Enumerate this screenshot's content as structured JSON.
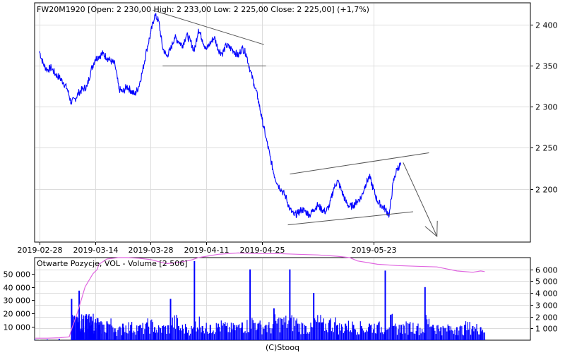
{
  "chart_data": [
    {
      "type": "line",
      "title": "FW20M1920 [Open: 2 230,00  High: 2 233,00  Low: 2 225,00  Close: 2 225,00] (+1,7%)",
      "xlabel": "",
      "ylabel": "",
      "x_tick_labels": [
        "2019-02-28",
        "2019-03-14",
        "2019-03-28",
        "2019-04-11",
        "2019-04-25",
        "2019-05-23"
      ],
      "x_tick_days": [
        0,
        14,
        28,
        42,
        56,
        84
      ],
      "x_range_days": [
        -1.2,
        123.5
      ],
      "ylim": [
        2135,
        2427
      ],
      "y_ticks": [
        2200,
        2250,
        2300,
        2350,
        2400
      ],
      "y_tick_labels": [
        "2 200",
        "2 250",
        "2 300",
        "2 350",
        "2 400"
      ],
      "grid": true,
      "series": [
        {
          "color": "#0000ff",
          "x_days": [
            0,
            1,
            2,
            3,
            4,
            5,
            6,
            7,
            8,
            9,
            10,
            11,
            12,
            13,
            14,
            15,
            16,
            17,
            18,
            19,
            20,
            21,
            22,
            23,
            24,
            25,
            26,
            27,
            28,
            29,
            30,
            31,
            32,
            33,
            34,
            35,
            36,
            37,
            38,
            39,
            40,
            41,
            42,
            43,
            44,
            45,
            46,
            47,
            48,
            49,
            50,
            51,
            52,
            53,
            54,
            55,
            56,
            57,
            58,
            59,
            60,
            61,
            62,
            63,
            64,
            65,
            66,
            67,
            68,
            69,
            70,
            71,
            72,
            73,
            74,
            75,
            76,
            77,
            78,
            79,
            80,
            81,
            82,
            83,
            84,
            85,
            86,
            87,
            88,
            89,
            90,
            91
          ],
          "values": [
            2368,
            2352,
            2345,
            2348,
            2340,
            2336,
            2330,
            2322,
            2305,
            2310,
            2318,
            2322,
            2325,
            2345,
            2358,
            2362,
            2365,
            2360,
            2356,
            2352,
            2322,
            2318,
            2325,
            2320,
            2315,
            2325,
            2345,
            2370,
            2390,
            2412,
            2405,
            2372,
            2362,
            2370,
            2385,
            2380,
            2375,
            2388,
            2380,
            2368,
            2395,
            2382,
            2370,
            2378,
            2385,
            2370,
            2365,
            2375,
            2372,
            2368,
            2362,
            2372,
            2365,
            2345,
            2328,
            2310,
            2285,
            2262,
            2240,
            2218,
            2205,
            2198,
            2190,
            2175,
            2168,
            2170,
            2175,
            2172,
            2168,
            2175,
            2180,
            2175,
            2172,
            2180,
            2200,
            2210,
            2198,
            2185,
            2178,
            2180,
            2185,
            2190,
            2205,
            2215,
            2200,
            2185,
            2180,
            2175,
            2168,
            2208,
            2225,
            2230
          ]
        }
      ],
      "annotations": [
        {
          "type": "trend-line",
          "points": [
            [
              28.5,
              2418
            ],
            [
              56.5,
              2376
            ]
          ]
        },
        {
          "type": "trend-line",
          "points": [
            [
              31,
              2350
            ],
            [
              57,
              2350
            ]
          ]
        },
        {
          "type": "trend-line",
          "points": [
            [
              62.5,
              2156
            ],
            [
              94,
              2172
            ]
          ]
        },
        {
          "type": "trend-line",
          "points": [
            [
              63,
              2218
            ],
            [
              98,
              2244
            ]
          ]
        },
        {
          "type": "arrow",
          "points": [
            [
              91.5,
              2232
            ],
            [
              100,
              2142
            ]
          ]
        }
      ]
    },
    {
      "type": "line",
      "title": "Otwarte Pozycje, VOL - Volume [2 506]",
      "xlabel": "",
      "ylabel": "",
      "x_range_days": [
        -1.2,
        123.5
      ],
      "ylim_left": [
        0,
        62000
      ],
      "ylim_right": [
        0,
        7000
      ],
      "y_ticks_left": [
        10000,
        20000,
        30000,
        40000,
        50000
      ],
      "y_tick_labels_left": [
        "10 000",
        "20 000",
        "30 000",
        "40 000",
        "50 000"
      ],
      "y_ticks_right": [
        1000,
        2000,
        3000,
        4000,
        5000,
        6000
      ],
      "y_tick_labels_right": [
        "1 000",
        "2 000",
        "3 000",
        "4 000",
        "5 000",
        "6 000"
      ],
      "grid": true,
      "series": [
        {
          "type": "line",
          "axis": "left",
          "color": "#e066e0",
          "x_days": [
            -1,
            2,
            5,
            7.5,
            8.2,
            9.5,
            10.5,
            11.5,
            12.5,
            13.5,
            14.5,
            15,
            17,
            20,
            22,
            25,
            28,
            30,
            32,
            34,
            36,
            38,
            40,
            45,
            50,
            55,
            60,
            65,
            70,
            75,
            78,
            80,
            85,
            90,
            95,
            100,
            105,
            109,
            111,
            112
          ],
          "values": [
            1500,
            1500,
            1800,
            2500,
            9000,
            20000,
            30000,
            40000,
            45000,
            50000,
            53000,
            57000,
            61000,
            62000,
            62000,
            61500,
            60500,
            59000,
            57500,
            58000,
            59000,
            60000,
            62000,
            64500,
            65500,
            65000,
            65000,
            64500,
            64000,
            63000,
            62000,
            59500,
            57000,
            56000,
            55500,
            55000,
            52000,
            51000,
            52000,
            51500
          ]
        },
        {
          "type": "bar",
          "axis": "right",
          "color": "#0000ff",
          "x_days": [
            -1,
            2,
            5,
            8.1,
            8.6,
            9.4,
            10,
            11,
            11.8,
            12.4,
            13,
            14,
            15,
            17,
            19,
            21,
            23,
            25,
            27,
            29,
            31,
            33,
            35,
            37,
            39,
            41,
            43,
            45,
            47,
            49,
            51,
            53,
            55,
            57,
            59,
            61,
            63,
            65,
            67,
            69,
            71,
            73,
            75,
            77,
            79,
            81,
            83,
            85,
            87,
            89,
            91,
            93,
            95,
            97,
            99,
            101,
            103,
            105,
            107,
            109,
            111
          ],
          "values": [
            40,
            60,
            120,
            3500,
            1600,
            2000,
            4200,
            1800,
            2200,
            1500,
            2000,
            1500,
            1300,
            1600,
            1000,
            1400,
            1300,
            1200,
            1500,
            1100,
            1200,
            3500,
            1200,
            1100,
            6700,
            1200,
            1300,
            1400,
            1200,
            1300,
            1500,
            6000,
            1400,
            1300,
            2700,
            1800,
            6000,
            1400,
            1200,
            4000,
            1500,
            1700,
            1300,
            1400,
            1300,
            1200,
            1400,
            1300,
            5900,
            1200,
            1300,
            1400,
            1200,
            4500,
            1300,
            1100,
            1200,
            1100,
            1300,
            1200,
            1100
          ]
        }
      ]
    }
  ],
  "footer": {
    "credit": "(C)Stooq"
  }
}
